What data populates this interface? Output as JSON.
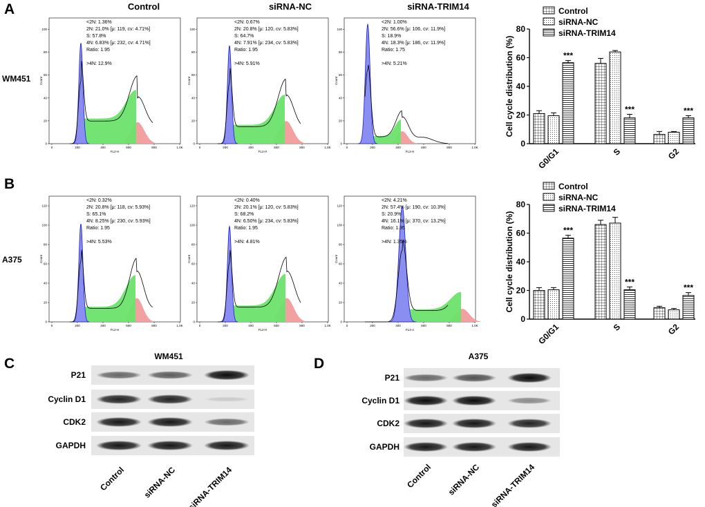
{
  "panels": {
    "A": "A",
    "B": "B",
    "C": "C",
    "D": "D"
  },
  "column_titles": [
    "Control",
    "siRNA-NC",
    "siRNA-TRIM14"
  ],
  "row_labels": {
    "A": "WM451",
    "B": "A375"
  },
  "hist_axis": {
    "x_ticks": [
      "0",
      "200",
      "400",
      "600",
      "800",
      "1.0K"
    ],
    "y_ticks_A": [
      "0",
      "20",
      "40",
      "60",
      "80",
      "100"
    ],
    "y_ticks_B": [
      "0",
      "20",
      "40",
      "60",
      "80",
      "100",
      "120"
    ],
    "ylabel": "Count"
  },
  "histograms": {
    "A": [
      {
        "xlabel": "FL2-H",
        "stats": [
          "<2N: 1.36%",
          "2N: 21.0%  [μ: 119, cv: 4.71%]",
          "S: 57.8%",
          "4N: 6.83%  [μ: 232, cv: 4.71%]",
          "Ratio: 1.95",
          "",
          ">4N: 12.9%"
        ]
      },
      {
        "xlabel": "FL2-H",
        "stats": [
          "<2N: 0.67%",
          "2N: 20.8%  [μ: 120, cv: 5.83%]",
          "S: 64.7%",
          "4N: 7.91%  [μ: 234, cv: 5.83%]",
          "Ratio: 1.95",
          "",
          ">4N: 5.91%"
        ]
      },
      {
        "xlabel": "FL3-H",
        "stats": [
          "<2N: 1.00%",
          "2N: 56.6%  [μ: 106, cv: 11.9%]",
          "S: 18.9%",
          "4N: 18.3%  [μ: 186, cv: 11.9%]",
          "Ratio: 1.75",
          "",
          ">4N: 5.21%"
        ]
      }
    ],
    "B": [
      {
        "xlabel": "FL2-H",
        "stats": [
          "<2N: 0.32%",
          "2N: 20.8%  [μ: 118, cv: 5.93%]",
          "S: 65.1%",
          "4N: 8.25%  [μ: 230, cv: 5.93%]",
          "Ratio: 1.95",
          "",
          ">4N: 5.53%"
        ]
      },
      {
        "xlabel": "FL2-H",
        "stats": [
          "<2N: 0.40%",
          "2N: 20.1%  [μ: 120, cv: 5.83%]",
          "S: 68.2%",
          "4N: 6.50%  [μ: 234, cv: 5.83%]",
          "Ratio: 1.95",
          "",
          ">4N: 4.81%"
        ]
      },
      {
        "xlabel": "FL3-A",
        "stats": [
          "<2N: 4.21%",
          "2N: 57.4%  [μ: 190, cv: 10.3%]",
          "S: 20.9%",
          "4N: 16.1%  [μ: 370, cv: 13.2%]",
          "Ratio: 1.95",
          "",
          ">4N: 1.35%"
        ]
      }
    ]
  },
  "chart_data": [
    {
      "type": "bar",
      "panel": "A",
      "categories": [
        "G0/G1",
        "S",
        "G2"
      ],
      "ylabel": "Cell cycle distribution (%)",
      "ylim": [
        0,
        80
      ],
      "yticks": [
        0,
        20,
        40,
        60,
        80
      ],
      "legend_position": "top",
      "series": [
        {
          "name": "Control",
          "values": [
            21,
            56,
            6.5
          ],
          "errors": [
            2,
            3.5,
            2
          ]
        },
        {
          "name": "siRNA-NC",
          "values": [
            19.5,
            64,
            8
          ],
          "errors": [
            2,
            1,
            0.5
          ]
        },
        {
          "name": "siRNA-TRIM14",
          "values": [
            56.5,
            18,
            18
          ],
          "errors": [
            1.5,
            2.5,
            1.5
          ]
        }
      ],
      "annotations": [
        {
          "series": "siRNA-TRIM14",
          "category": "G0/G1",
          "text": "***"
        },
        {
          "series": "siRNA-TRIM14",
          "category": "S",
          "text": "***"
        },
        {
          "series": "siRNA-TRIM14",
          "category": "G2",
          "text": "***"
        }
      ]
    },
    {
      "type": "bar",
      "panel": "B",
      "categories": [
        "G0/G1",
        "S",
        "G2"
      ],
      "ylabel": "Cell cycle distribution (%)",
      "ylim": [
        0,
        80
      ],
      "yticks": [
        0,
        20,
        40,
        60,
        80
      ],
      "legend_position": "top",
      "series": [
        {
          "name": "Control",
          "values": [
            20,
            66,
            8
          ],
          "errors": [
            2,
            3,
            1
          ]
        },
        {
          "name": "siRNA-NC",
          "values": [
            20.5,
            67,
            6.5
          ],
          "errors": [
            1.5,
            4,
            1
          ]
        },
        {
          "name": "siRNA-TRIM14",
          "values": [
            56.5,
            20.5,
            16.5
          ],
          "errors": [
            2,
            2,
            2
          ]
        }
      ],
      "annotations": [
        {
          "series": "siRNA-TRIM14",
          "category": "G0/G1",
          "text": "***"
        },
        {
          "series": "siRNA-TRIM14",
          "category": "S",
          "text": "***"
        },
        {
          "series": "siRNA-TRIM14",
          "category": "G2",
          "text": "***"
        }
      ]
    }
  ],
  "western": {
    "C": {
      "title": "WM451",
      "proteins": [
        "P21",
        "Cyclin D1",
        "CDK2",
        "GAPDH"
      ],
      "lanes": [
        "Control",
        "siRNA-NC",
        "siRNA-TRIM14"
      ],
      "intensity": [
        [
          0.55,
          0.6,
          0.95
        ],
        [
          0.85,
          0.85,
          0.1
        ],
        [
          0.9,
          0.9,
          0.55
        ],
        [
          0.9,
          0.9,
          0.9
        ]
      ]
    },
    "D": {
      "title": "A375",
      "proteins": [
        "P21",
        "Cyclin D1",
        "CDK2",
        "GAPDH"
      ],
      "lanes": [
        "Control",
        "siRNA-NC",
        "siRNA-TRIM14"
      ],
      "intensity": [
        [
          0.55,
          0.65,
          0.95
        ],
        [
          0.95,
          0.95,
          0.4
        ],
        [
          0.9,
          0.9,
          0.85
        ],
        [
          0.9,
          0.9,
          0.9
        ]
      ]
    }
  },
  "colors": {
    "blue_fill": "#8a8ef0",
    "blue_line": "#1a1ad0",
    "green_fill": "#6be36b",
    "red_fill": "#f2a0a0"
  }
}
